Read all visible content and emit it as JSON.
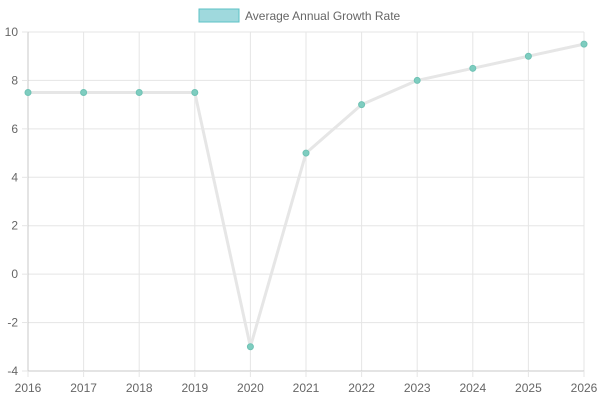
{
  "chart_data": {
    "type": "line",
    "x": [
      "2016",
      "2017",
      "2018",
      "2019",
      "2020",
      "2021",
      "2022",
      "2023",
      "2024",
      "2025",
      "2026"
    ],
    "series": [
      {
        "name": "Average Annual Growth Rate",
        "values": [
          7.5,
          7.5,
          7.5,
          7.5,
          -3,
          5,
          7,
          8,
          8.5,
          9,
          9.5
        ]
      }
    ],
    "ylim": [
      -4,
      10
    ],
    "yticks": [
      "10",
      "8",
      "6",
      "4",
      "2",
      "0",
      "-2",
      "-4"
    ],
    "grid": true,
    "legend_position": "top-center",
    "colors": {
      "point": "#7ecdc0",
      "point_stroke": "#6fc2b4",
      "line": "#e6e6e6",
      "legend_fill": "#9fd9dd",
      "legend_stroke": "#5cc2c6",
      "grid": "#e5e5e5",
      "axis": "#c8c8c8",
      "text": "#666666"
    }
  }
}
